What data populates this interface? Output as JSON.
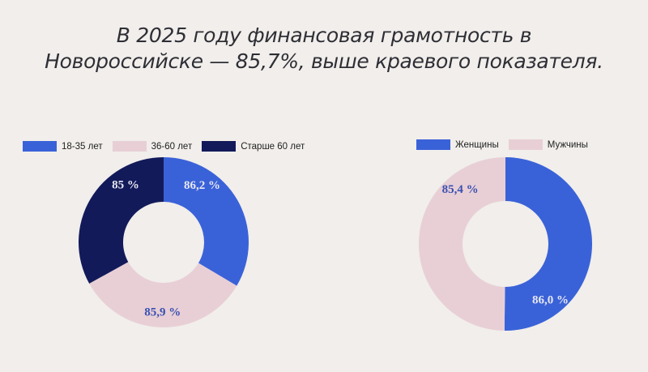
{
  "title_lines": [
    "В 2025 году финансовая грамотность в",
    "Новороссийске — 85,7%, выше краевого показателя."
  ],
  "chart_data": [
    {
      "type": "pie",
      "donut": true,
      "categories": [
        "18-35 лет",
        "36-60 лет",
        "Старше 60 лет"
      ],
      "values": [
        86.2,
        85.9,
        85
      ],
      "data_labels": [
        "86,2 %",
        "85,9 %",
        "85 %"
      ],
      "colors": [
        "#3a62d8",
        "#e8cfd6",
        "#121a5a"
      ],
      "label_colors": [
        "#e8e8f2",
        "#3a50b0",
        "#e8e8f2"
      ],
      "legend": "top"
    },
    {
      "type": "pie",
      "donut": true,
      "categories": [
        "Женщины",
        "Мужчины"
      ],
      "values": [
        86.0,
        85.4
      ],
      "data_labels": [
        "86,0 %",
        "85,4 %"
      ],
      "colors": [
        "#3a62d8",
        "#e8cfd6"
      ],
      "label_colors": [
        "#e8e8f2",
        "#3a50b0"
      ],
      "legend": "top"
    }
  ]
}
